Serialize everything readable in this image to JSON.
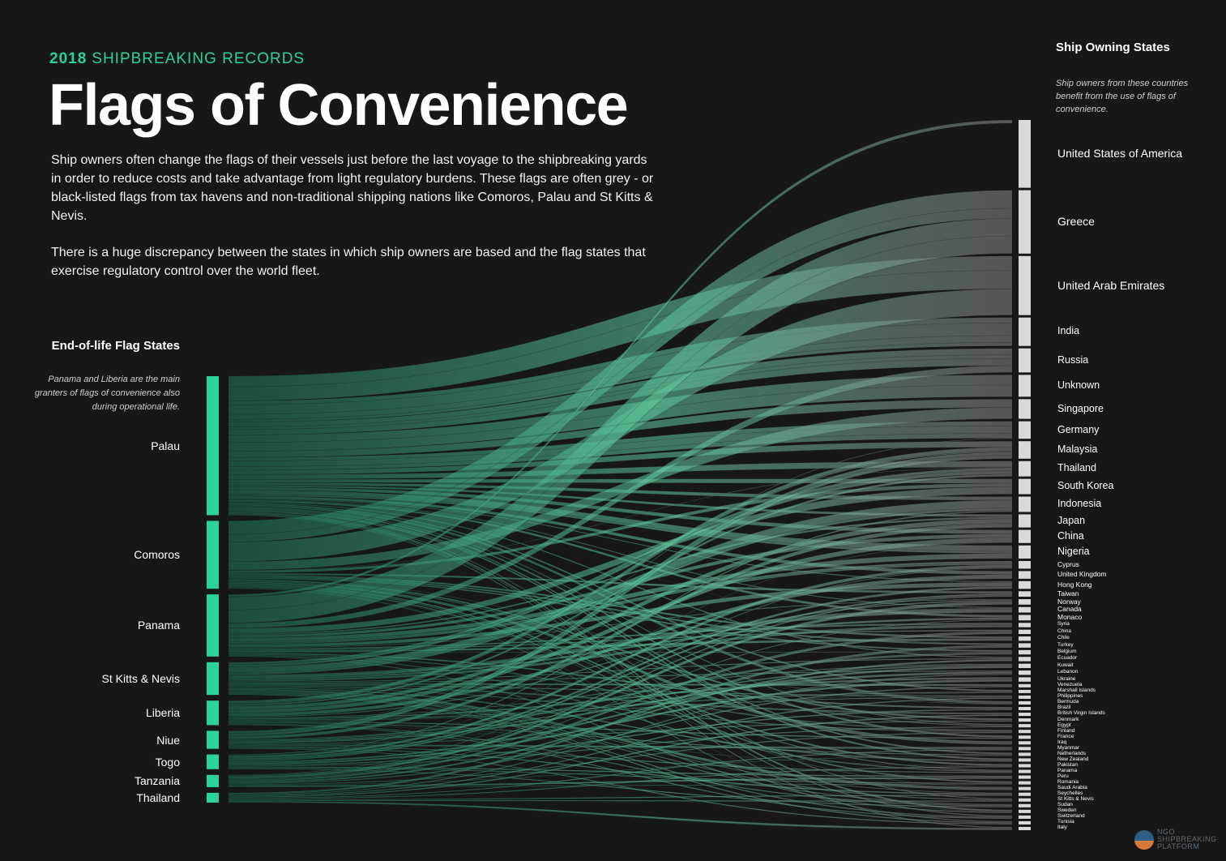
{
  "header": {
    "year": "2018",
    "kicker": "SHIPBREAKING RECORDS",
    "title": "Flags of Convenience",
    "paragraph1": "Ship owners often change the flags of their vessels just before the last voyage to the shipbreaking yards in order to reduce costs and take advantage from light regulatory burdens. These flags are often grey - or black-listed flags from tax havens and non-traditional shipping nations like Comoros, Palau and St Kitts & Nevis.",
    "paragraph2": "There is a huge discrepancy between the states in which ship owners are based and the flag states that exercise regulatory control over the world fleet."
  },
  "left_panel": {
    "heading": "End-of-life Flag States",
    "note": "Panama and Liberia are the main granters of flags of convenience also during operational life."
  },
  "right_panel": {
    "heading": "Ship Owning States",
    "note": "Ship owners from these countries benefit from the use of flags of convenience."
  },
  "colors": {
    "background": "#171717",
    "source_bar": "#2bd39a",
    "target_bar": "#d9d9d9",
    "kicker": "#2bd39a",
    "flow_start": "#1f7a5a",
    "flow_mid": "#5fc99d",
    "flow_end": "#8a8a8a"
  },
  "logo": {
    "line1": "NGO",
    "line2": "SHIPBREAKING",
    "line3": "PLATFORM"
  },
  "diagram": {
    "type": "sankey",
    "sources": [
      {
        "name": "Palau",
        "value": 170
      },
      {
        "name": "Comoros",
        "value": 83
      },
      {
        "name": "Panama",
        "value": 76
      },
      {
        "name": "St Kitts & Nevis",
        "value": 40
      },
      {
        "name": "Liberia",
        "value": 30
      },
      {
        "name": "Niue",
        "value": 22
      },
      {
        "name": "Togo",
        "value": 18
      },
      {
        "name": "Tanzania",
        "value": 15
      },
      {
        "name": "Thailand",
        "value": 12
      }
    ],
    "targets": [
      {
        "name": "United States of America",
        "value": 62
      },
      {
        "name": "Greece",
        "value": 58
      },
      {
        "name": "United Arab Emirates",
        "value": 54
      },
      {
        "name": "India",
        "value": 26
      },
      {
        "name": "Russia",
        "value": 22
      },
      {
        "name": "Unknown",
        "value": 20
      },
      {
        "name": "Singapore",
        "value": 18
      },
      {
        "name": "Germany",
        "value": 16
      },
      {
        "name": "Malaysia",
        "value": 16
      },
      {
        "name": "Thailand",
        "value": 14
      },
      {
        "name": "South Korea",
        "value": 14
      },
      {
        "name": "Indonesia",
        "value": 14
      },
      {
        "name": "Japan",
        "value": 12
      },
      {
        "name": "China",
        "value": 12
      },
      {
        "name": "Nigeria",
        "value": 12
      },
      {
        "name": "Cyprus",
        "value": 7
      },
      {
        "name": "United Kingdom",
        "value": 7
      },
      {
        "name": "Hong Kong",
        "value": 7
      },
      {
        "name": "Taiwan",
        "value": 5
      },
      {
        "name": "Norway",
        "value": 5
      },
      {
        "name": "Canada",
        "value": 5
      },
      {
        "name": "Monaco",
        "value": 5
      },
      {
        "name": "Syria",
        "value": 4
      },
      {
        "name": "China",
        "value": 4
      },
      {
        "name": "Chile",
        "value": 4
      },
      {
        "name": "Turkey",
        "value": 4
      },
      {
        "name": "Belgium",
        "value": 4
      },
      {
        "name": "Ecuador",
        "value": 4
      },
      {
        "name": "Kuwait",
        "value": 4
      },
      {
        "name": "Lebanon",
        "value": 4
      },
      {
        "name": "Ukraine",
        "value": 4
      },
      {
        "name": "Venezuela",
        "value": 3
      },
      {
        "name": "Marshall Islands",
        "value": 3
      },
      {
        "name": "Philippines",
        "value": 3
      },
      {
        "name": "Bermuda",
        "value": 3
      },
      {
        "name": "Brazil",
        "value": 3
      },
      {
        "name": "British Virgin Islands",
        "value": 3
      },
      {
        "name": "Denmark",
        "value": 3
      },
      {
        "name": "Egypt",
        "value": 3
      },
      {
        "name": "Finland",
        "value": 3
      },
      {
        "name": "France",
        "value": 3
      },
      {
        "name": "Iraq",
        "value": 3
      },
      {
        "name": "Myanmar",
        "value": 3
      },
      {
        "name": "Netherlands",
        "value": 3
      },
      {
        "name": "New Zealand",
        "value": 3
      },
      {
        "name": "Pakistan",
        "value": 3
      },
      {
        "name": "Panama",
        "value": 3
      },
      {
        "name": "Peru",
        "value": 3
      },
      {
        "name": "Romania",
        "value": 3
      },
      {
        "name": "Saudi Arabia",
        "value": 3
      },
      {
        "name": "Seychelles",
        "value": 3
      },
      {
        "name": "St Kitts & Nevis",
        "value": 3
      },
      {
        "name": "Sudan",
        "value": 3
      },
      {
        "name": "Sweden",
        "value": 3
      },
      {
        "name": "Switzerland",
        "value": 3
      },
      {
        "name": "Tunisia",
        "value": 3
      },
      {
        "name": "Italy",
        "value": 3
      }
    ]
  }
}
